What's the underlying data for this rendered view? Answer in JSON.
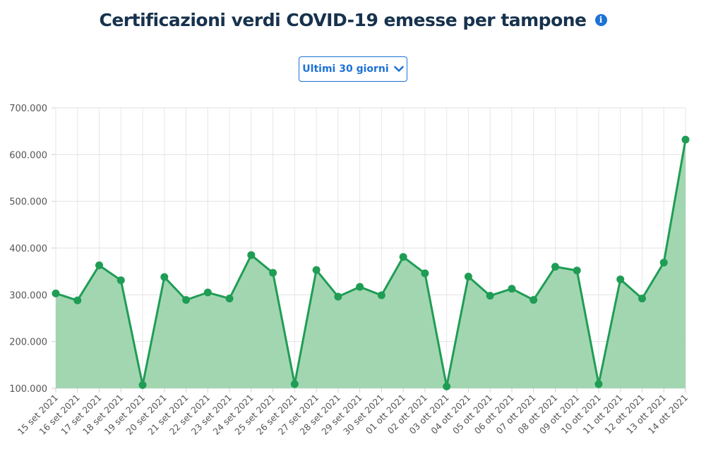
{
  "header": {
    "title": "Certificazioni verdi COVID-19 emesse per tampone"
  },
  "controls": {
    "range_label": "Ultimi 30 giorni"
  },
  "colors": {
    "line": "#1f9d55",
    "fill": "#9dd4ad",
    "accent": "#1d72d6",
    "title": "#17324d"
  },
  "chart_data": {
    "type": "area",
    "title": "Certificazioni verdi COVID-19 emesse per tampone",
    "xlabel": "",
    "ylabel": "",
    "ylim": [
      100000,
      700000
    ],
    "yticks": [
      100000,
      200000,
      300000,
      400000,
      500000,
      600000,
      700000
    ],
    "ytick_labels": [
      "100.000",
      "200.000",
      "300.000",
      "400.000",
      "500.000",
      "600.000",
      "700.000"
    ],
    "grid": true,
    "legend": "none",
    "categories": [
      "15 set 2021",
      "16 set 2021",
      "17 set 2021",
      "18 set 2021",
      "19 set 2021",
      "20 set 2021",
      "21 set 2021",
      "22 set 2021",
      "23 set 2021",
      "24 set 2021",
      "25 set 2021",
      "26 set 2021",
      "27 set 2021",
      "28 set 2021",
      "29 set 2021",
      "30 set 2021",
      "01 ott 2021",
      "02 ott 2021",
      "03 ott 2021",
      "04 ott 2021",
      "05 ott 2021",
      "06 ott 2021",
      "07 ott 2021",
      "08 ott 2021",
      "09 ott 2021",
      "10 ott 2021",
      "11 ott 2021",
      "12 ott 2021",
      "13 ott 2021",
      "14 ott 2021"
    ],
    "values": [
      303000,
      288000,
      363000,
      331000,
      107000,
      338000,
      289000,
      305000,
      292000,
      385000,
      347000,
      109000,
      353000,
      296000,
      317000,
      299000,
      381000,
      346000,
      104000,
      339000,
      298000,
      313000,
      289000,
      360000,
      352000,
      109000,
      333000,
      292000,
      369000,
      632000
    ]
  }
}
